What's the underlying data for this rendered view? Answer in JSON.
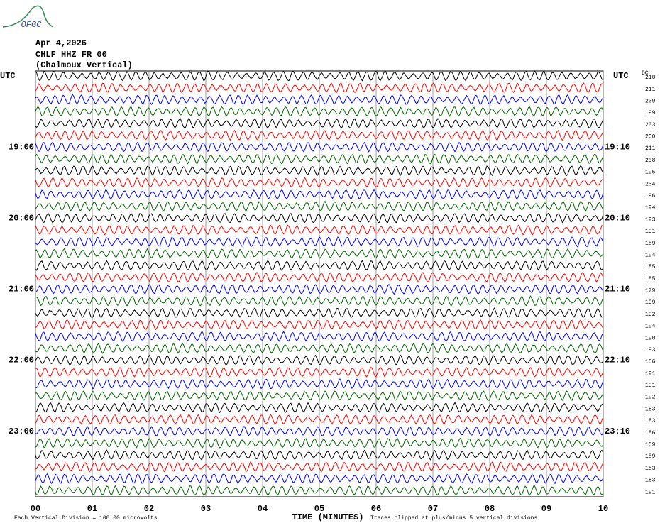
{
  "logo": {
    "text": "OFGC"
  },
  "header": {
    "date": "Apr 4,2026",
    "station": "CHLF HHZ FR 00",
    "location": "(Chalmoux Vertical)"
  },
  "utc_left": "UTC",
  "utc_right": "UTC",
  "dc_header": "DC",
  "hours": [
    {
      "left": "19:00",
      "right": "19:10"
    },
    {
      "left": "20:00",
      "right": "20:10"
    },
    {
      "left": "21:00",
      "right": "21:10"
    },
    {
      "left": "22:00",
      "right": "22:10"
    },
    {
      "left": "23:00",
      "right": "23:10"
    }
  ],
  "dc": [
    210,
    211,
    209,
    199,
    203,
    200,
    211,
    208,
    195,
    204,
    196,
    194,
    193,
    191,
    189,
    194,
    185,
    185,
    179,
    199,
    192,
    194,
    190,
    193,
    186,
    191,
    191,
    192,
    183,
    183,
    186,
    189,
    189,
    183,
    183,
    191
  ],
  "trace_colors": [
    "#000000",
    "#ff0000",
    "#0000ff",
    "#006400"
  ],
  "x_axis": {
    "label": "TIME (MINUTES)",
    "xlim": [
      0,
      10
    ],
    "ticks": [
      {
        "value": 0,
        "label": "00"
      },
      {
        "value": 1,
        "label": "01"
      },
      {
        "value": 2,
        "label": "02"
      },
      {
        "value": 3,
        "label": "03"
      },
      {
        "value": 4,
        "label": "04"
      },
      {
        "value": 5,
        "label": "05"
      },
      {
        "value": 6,
        "label": "06"
      },
      {
        "value": 7,
        "label": "07"
      },
      {
        "value": 8,
        "label": "08"
      },
      {
        "value": 9,
        "label": "09"
      },
      {
        "value": 10,
        "label": "10"
      }
    ]
  },
  "footer": {
    "scale": "Each Vertical Division =  100.00 microvolts",
    "clip": "Traces clipped at plus/minus 5 vertical divisions"
  }
}
